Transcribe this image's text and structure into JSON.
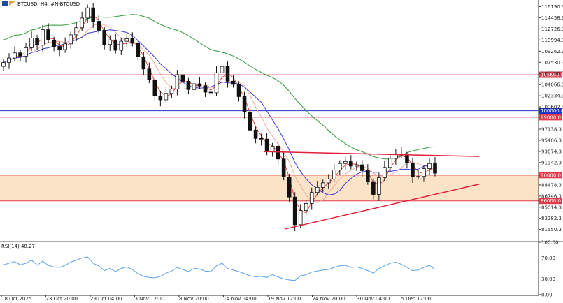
{
  "header": {
    "title": "BTCUSD, H4:  #N-BTCUSD"
  },
  "rsi_panel": {
    "label": "RSI(14) 48.27"
  },
  "colors": {
    "bull": "#111111",
    "bear": "#111111",
    "ma_fast": "#e0463c",
    "ma_mid": "#f2a79c",
    "ma_slow_blue": "#3b3bd9",
    "ma_long_green": "#2e9a3a",
    "rsi": "#5aa3e8",
    "zone_fill": "#fbe3c8",
    "hline_red": "#e33a4b",
    "hline_blue": "#2233cc",
    "trend": "#e0203a",
    "tag_red": "#e33a4b",
    "tag_blue": "#2233cc"
  },
  "chart_data": {
    "type": "candlestick",
    "symbol": "BTCUSD",
    "timeframe": "H4",
    "price_axis": {
      "range": [
        80000,
        117000
      ],
      "ticks": [
        "116190.3",
        "114458.3",
        "112726.3",
        "110994.3",
        "109262.3",
        "107530.3",
        "105798.3",
        "104066.3",
        "102334.3",
        "100602.3",
        "97138.3",
        "95406.3",
        "93674.3",
        "91942.3",
        "88478.3",
        "86746.3",
        "85014.3",
        "83282.3",
        "81550.3"
      ]
    },
    "time_axis": {
      "ticks": [
        "18 Oct 2025",
        "23 Oct 20:00",
        "29 Oct 04:00",
        "3 Nov 12:00",
        "8 Nov 20:00",
        "14 Nov 04:00",
        "19 Nov 12:00",
        "24 Nov 20:00",
        "30 Nov 04:00",
        "5 Dec 12:00"
      ]
    },
    "levels": [
      {
        "label": "105600.0",
        "value": 105600,
        "color": "red"
      },
      {
        "label": "100000.0",
        "value": 100000,
        "color": "blue"
      },
      {
        "label": "99000.0",
        "value": 99000,
        "color": "red"
      },
      {
        "label": "90000.0",
        "value": 90000,
        "color": "red"
      },
      {
        "label": "86000.0",
        "value": 86000,
        "color": "red"
      }
    ],
    "zone": {
      "from": 86000,
      "to": 90000
    },
    "trendlines": [
      {
        "name": "upper",
        "from": {
          "bar": 0.49,
          "price": 93650
        },
        "to": {
          "bar": 0.89,
          "price": 92900
        }
      },
      {
        "name": "lower",
        "from": {
          "bar": 0.53,
          "price": 81650
        },
        "to": {
          "bar": 0.89,
          "price": 88600
        }
      }
    ],
    "closes": [
      107500,
      108200,
      109000,
      108500,
      109800,
      111300,
      110200,
      112600,
      111000,
      110000,
      109500,
      110400,
      111800,
      112900,
      114400,
      116000,
      113900,
      112500,
      110300,
      111000,
      109400,
      110800,
      111200,
      110500,
      108400,
      106500,
      104800,
      102300,
      101700,
      102700,
      103400,
      105600,
      104600,
      103300,
      104200,
      103900,
      102900,
      102800,
      105900,
      106900,
      104600,
      104100,
      102200,
      99800,
      97000,
      95700,
      95600,
      93600,
      94500,
      92500,
      89700,
      86600,
      82300,
      84500,
      85600,
      87300,
      88100,
      88800,
      89400,
      90800,
      91800,
      92100,
      91400,
      91600,
      90700,
      89000,
      87000,
      89600,
      91200,
      92600,
      93300,
      93100,
      91900,
      89800,
      89800,
      91000,
      91800,
      90300
    ],
    "rsi": {
      "period": 14,
      "last": 48.27,
      "ticks": [
        "100.00",
        "70.00",
        "30.00",
        "0.00"
      ],
      "values": [
        57,
        60,
        63,
        57,
        60,
        66,
        56,
        64,
        56,
        53,
        52,
        56,
        62,
        66,
        70,
        72,
        60,
        55,
        46,
        50,
        44,
        50,
        53,
        48,
        40,
        35,
        33,
        32,
        35,
        41,
        45,
        52,
        48,
        44,
        50,
        49,
        45,
        44,
        55,
        60,
        50,
        47,
        44,
        40,
        36,
        34,
        35,
        33,
        38,
        34,
        30,
        28,
        27,
        36,
        38,
        43,
        45,
        47,
        48,
        52,
        55,
        56,
        52,
        53,
        50,
        46,
        41,
        50,
        55,
        60,
        62,
        58,
        52,
        46,
        47,
        52,
        56,
        48
      ]
    }
  }
}
